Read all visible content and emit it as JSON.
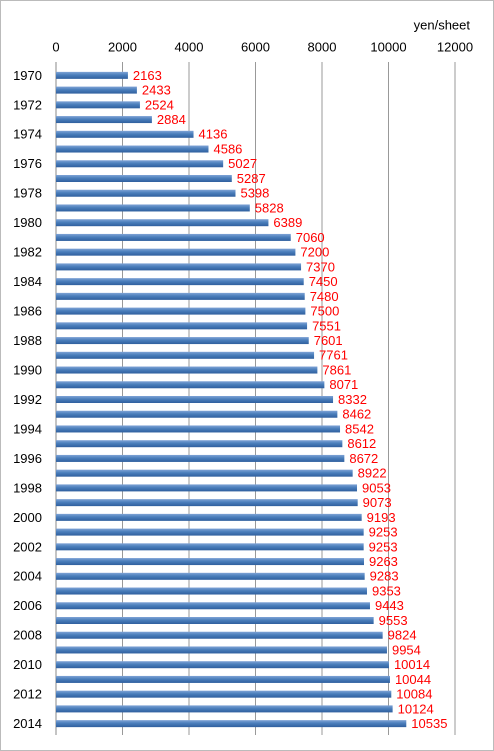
{
  "chart_data": {
    "type": "hbar",
    "x_axis_label": "yen/sheet",
    "categories": [
      "1970",
      null,
      "1972",
      null,
      "1974",
      null,
      "1976",
      null,
      "1978",
      null,
      "1980",
      null,
      "1982",
      null,
      "1984",
      null,
      "1986",
      null,
      "1988",
      null,
      "1990",
      null,
      "1992",
      null,
      "1994",
      null,
      "1996",
      null,
      "1998",
      null,
      "2000",
      null,
      "2002",
      null,
      "2004",
      null,
      "2006",
      null,
      "2008",
      null,
      "2010",
      null,
      "2012",
      null,
      "2014"
    ],
    "values": [
      2163,
      2433,
      2524,
      2884,
      4136,
      4586,
      5027,
      5287,
      5398,
      5828,
      6389,
      7060,
      7200,
      7370,
      7450,
      7480,
      7500,
      7551,
      7601,
      7761,
      7861,
      8071,
      8332,
      8462,
      8542,
      8612,
      8672,
      8922,
      9053,
      9073,
      9193,
      9253,
      9253,
      9263,
      9283,
      9353,
      9443,
      9553,
      9824,
      9954,
      10014,
      10044,
      10084,
      10124,
      10535
    ],
    "color": "#4a7ebb",
    "label_color": "#ff0000",
    "xlim": [
      0,
      12000
    ],
    "xticks": [
      0,
      2000,
      4000,
      6000,
      8000,
      10000,
      12000
    ],
    "grid": true
  }
}
